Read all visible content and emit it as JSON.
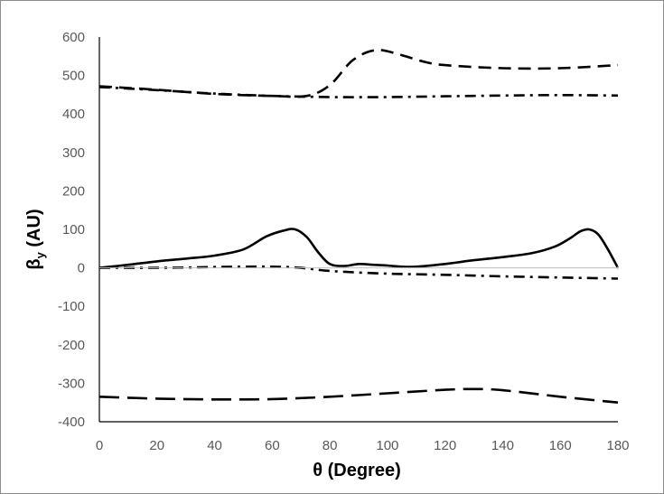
{
  "chart_data": {
    "type": "line",
    "xlabel": "θ (Degree)",
    "ylabel_main": "β",
    "ylabel_sub": "y",
    "ylabel_rest": " (AU)",
    "xlim": [
      0,
      180
    ],
    "ylim": [
      -400,
      600
    ],
    "x_ticks": [
      0,
      20,
      40,
      60,
      80,
      100,
      120,
      140,
      160,
      180
    ],
    "y_ticks": [
      600,
      500,
      400,
      300,
      200,
      100,
      0,
      -100,
      -200,
      -300,
      -400
    ],
    "grid": false,
    "legend": "none",
    "zero_line": true,
    "series": [
      {
        "style": "dash",
        "x": [
          0,
          20,
          40,
          60,
          72,
          80,
          88,
          96,
          104,
          112,
          120,
          140,
          160,
          180
        ],
        "values": [
          472,
          463,
          452,
          447,
          447,
          475,
          540,
          566,
          555,
          537,
          527,
          519,
          519,
          527
        ]
      },
      {
        "style": "dash-dot",
        "x": [
          0,
          20,
          40,
          60,
          80,
          100,
          120,
          140,
          160,
          180
        ],
        "values": [
          470,
          462,
          453,
          447,
          444,
          444,
          446,
          448,
          449,
          448
        ]
      },
      {
        "style": "solid",
        "x": [
          0,
          10,
          20,
          30,
          40,
          50,
          58,
          64,
          68,
          72,
          76,
          80,
          85,
          90,
          95,
          100,
          105,
          110,
          120,
          130,
          140,
          150,
          158,
          163,
          167,
          170,
          173,
          176,
          180
        ],
        "values": [
          0,
          8,
          17,
          24,
          32,
          48,
          82,
          97,
          100,
          80,
          40,
          10,
          5,
          10,
          8,
          6,
          3,
          3,
          10,
          20,
          28,
          38,
          55,
          75,
          95,
          100,
          88,
          55,
          0
        ]
      },
      {
        "style": "dash-dot",
        "x": [
          0,
          20,
          40,
          50,
          60,
          70,
          80,
          100,
          120,
          140,
          160,
          180
        ],
        "values": [
          0,
          0,
          2,
          3,
          3,
          0,
          -8,
          -15,
          -18,
          -22,
          -25,
          -28
        ]
      },
      {
        "style": "long-dash",
        "x": [
          0,
          20,
          40,
          60,
          80,
          100,
          120,
          130,
          140,
          160,
          180
        ],
        "values": [
          -335,
          -340,
          -342,
          -341,
          -335,
          -326,
          -317,
          -315,
          -318,
          -335,
          -350
        ]
      }
    ]
  }
}
